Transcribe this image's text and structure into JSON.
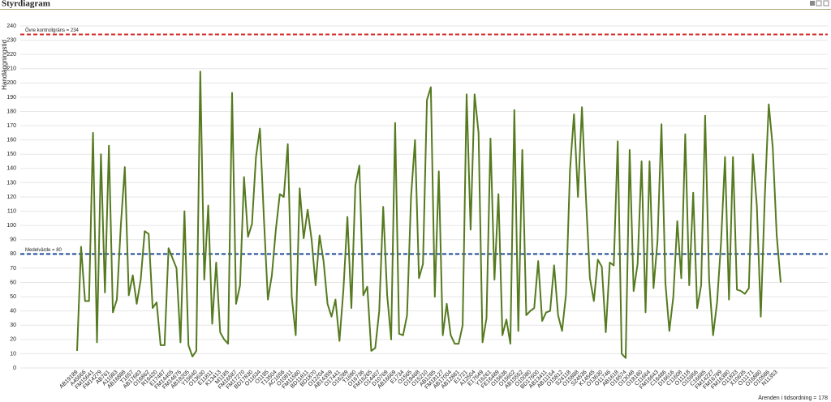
{
  "chart_data": {
    "type": "line",
    "title": "Styrdiagram",
    "y_label": "Handläggningstid",
    "x_annotation": "Ärenden i tidsordning = 178",
    "ylim": [
      0,
      240
    ],
    "yticks": [
      0,
      10,
      20,
      30,
      40,
      50,
      60,
      70,
      80,
      90,
      100,
      110,
      120,
      130,
      140,
      150,
      160,
      170,
      180,
      190,
      200,
      210,
      220,
      230,
      240
    ],
    "grid": true,
    "reference_lines": [
      {
        "label": "Övre kontrollgräns = 234",
        "value": 234,
        "color": "#d42a2a"
      },
      {
        "label": "Medelvärde = 80",
        "value": 80,
        "color": "#1f4a96"
      }
    ],
    "categories": [
      "AB19189",
      null,
      "A45666",
      null,
      "FM15641",
      null,
      "FM14279",
      null,
      "AB761",
      null,
      "A11983",
      null,
      "AB16888",
      null,
      "T1657",
      null,
      "AB17683",
      null,
      "O16862",
      null,
      "R16420",
      null,
      "E17487",
      null,
      "FM14405",
      null,
      "FM14676",
      null,
      "AB18205",
      null,
      "Y15640",
      null,
      "O13630",
      null,
      "E11811",
      null,
      "K13413",
      null,
      "M1185",
      null,
      "FM16587",
      null,
      "FM17270",
      null,
      "BD17830",
      null,
      "O11634",
      null,
      "O1185",
      null,
      "T13504",
      null,
      "AC1656",
      null,
      "O10811",
      null,
      "FM11580",
      null,
      "BD11811",
      null,
      "BD1870",
      null,
      "O12204",
      null,
      "AB14359",
      null,
      "O17441",
      null,
      "O16289",
      null,
      "T1690",
      null,
      "O16736",
      null,
      "FM16265",
      null,
      "O14407",
      null,
      "D10769",
      null,
      "AB16669",
      null,
      "E1734",
      null,
      "O1565",
      null,
      "O19468",
      null,
      "O15210",
      null,
      "AB1285",
      null,
      "FM18127",
      null,
      "AB17004",
      null,
      "AB12881",
      null,
      "E1721",
      null,
      "A12504",
      null,
      "E17649",
      null,
      "Y16261",
      null,
      "FE16489",
      null,
      "O15636",
      null,
      "O15602",
      null,
      "AB15552",
      null,
      "O10080",
      null,
      "BD17600",
      null,
      "AB13411",
      null,
      "AB11154",
      null,
      "O15812",
      null,
      "S24118",
      null,
      "O15888",
      null,
      "S24536",
      null,
      "K14545",
      null,
      "O13630",
      null,
      "O11746",
      null,
      "AB1618",
      null,
      "O16574",
      null,
      "O13048",
      null,
      "O18180",
      null,
      "C11664",
      null,
      "FM16643",
      null,
      "C16486",
      null,
      "D16616",
      null,
      "C11608",
      null,
      "O11118",
      null,
      "O15956",
      null,
      "C16685",
      null,
      "FM14227",
      null,
      "FM16799",
      null,
      "FM16380",
      null,
      "O11833",
      null,
      "X10635",
      null,
      "O11171",
      null,
      "O16880",
      null,
      "O10586",
      null,
      "N11353",
      null
    ],
    "series": [
      {
        "color": "#557a1f",
        "values": [
          12,
          85,
          47,
          47,
          165,
          18,
          150,
          53,
          156,
          39,
          48,
          100,
          141,
          51,
          65,
          45,
          62,
          96,
          94,
          42,
          46,
          16,
          16,
          84,
          77,
          70,
          18,
          110,
          16,
          8,
          12,
          208,
          62,
          114,
          31,
          74,
          25,
          20,
          17,
          193,
          45,
          58,
          134,
          92,
          101,
          148,
          168,
          105,
          48,
          65,
          97,
          122,
          120,
          157,
          50,
          23,
          126,
          91,
          111,
          90,
          58,
          93,
          75,
          45,
          36,
          48,
          19,
          55,
          106,
          42,
          128,
          142,
          51,
          57,
          12,
          14,
          40,
          113,
          51,
          20,
          172,
          24,
          23,
          37,
          120,
          160,
          63,
          73,
          188,
          197,
          50,
          138,
          23,
          45,
          23,
          17,
          17,
          30,
          192,
          97,
          192,
          165,
          18,
          35,
          161,
          62,
          122,
          23,
          34,
          17,
          181,
          26,
          153,
          37,
          40,
          42,
          75,
          33,
          39,
          40,
          72,
          37,
          26,
          52,
          139,
          178,
          120,
          183,
          120,
          63,
          47,
          76,
          71,
          25,
          74,
          72,
          159,
          10,
          7,
          153,
          54,
          73,
          145,
          39,
          145,
          56,
          89,
          171,
          60,
          26,
          50,
          103,
          63,
          164,
          58,
          123,
          42,
          58,
          177,
          62,
          23,
          46,
          88,
          148,
          48,
          148,
          55,
          54,
          52,
          56,
          150,
          114,
          36,
          120,
          185,
          155,
          93,
          60
        ]
      }
    ]
  }
}
